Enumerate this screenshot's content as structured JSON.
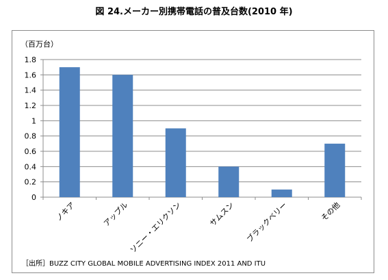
{
  "title": "図 24.メーカー別携帯電話の普及台数(2010 年)",
  "source": "［出所］BUZZ CITY GLOBAL MOBILE ADVERTISING INDEX 2011 AND ITU",
  "chart_data": {
    "type": "bar",
    "ylabel": "（百万台）",
    "xlabel": "",
    "categories": [
      "ノキア",
      "アップル",
      "ソニー・エリクソン",
      "サムスン",
      "ブラックベリー",
      "その他"
    ],
    "values": [
      1.7,
      1.6,
      0.9,
      0.4,
      0.1,
      0.7
    ],
    "ylim": [
      0,
      1.8
    ],
    "yticks": [
      "0",
      "0.2",
      "0.4",
      "0.6",
      "0.8",
      "1",
      "1.2",
      "1.4",
      "1.6",
      "1.8"
    ],
    "grid": true,
    "legend": "none",
    "bar_color": "#4f81bd",
    "grid_color": "#8c8c8c"
  }
}
